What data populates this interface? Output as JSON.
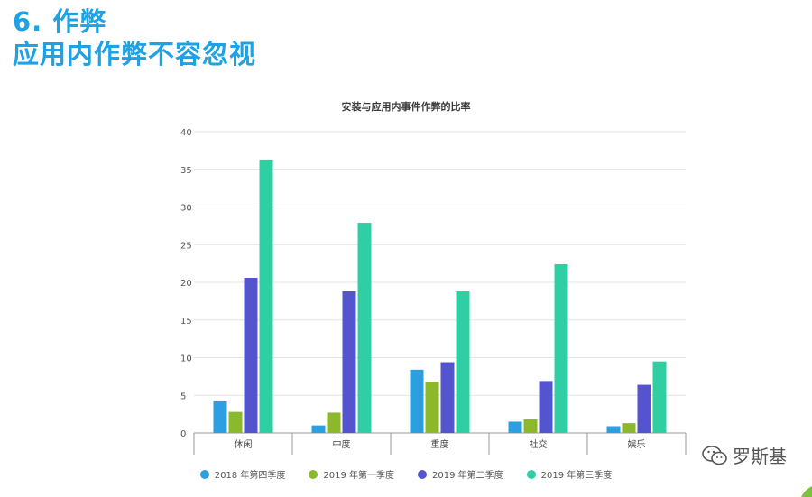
{
  "heading": {
    "line1": "6. 作弊",
    "line2": "应用内作弊不容忽视"
  },
  "chart_data": {
    "type": "bar",
    "title": "安装与应用内事件作弊的比率",
    "xlabel": "",
    "ylabel": "",
    "categories": [
      "休闲",
      "中度",
      "重度",
      "社交",
      "娱乐"
    ],
    "ylim": [
      0,
      40
    ],
    "yticks": [
      0,
      5,
      10,
      15,
      20,
      25,
      30,
      35,
      40
    ],
    "grid": true,
    "legend_position": "bottom",
    "series": [
      {
        "name": "2018 年第四季度",
        "color": "#2b9fe0",
        "values": [
          4.2,
          1.0,
          8.4,
          1.5,
          0.9
        ]
      },
      {
        "name": "2019 年第一季度",
        "color": "#8cb82b",
        "values": [
          2.8,
          2.7,
          6.8,
          1.8,
          1.3
        ]
      },
      {
        "name": "2019 年第二季度",
        "color": "#5554cf",
        "values": [
          20.6,
          18.8,
          9.4,
          6.9,
          6.4
        ]
      },
      {
        "name": "2019 年第三季度",
        "color": "#2fcfa3",
        "values": [
          36.3,
          27.9,
          18.8,
          22.4,
          9.5
        ]
      }
    ]
  },
  "watermark": {
    "icon": "wechat-icon",
    "text": "罗斯基"
  }
}
